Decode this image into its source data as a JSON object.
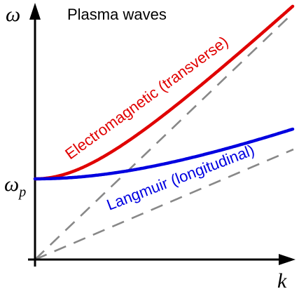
{
  "title": "Plasma waves",
  "axes": {
    "y_label": "ω",
    "x_label": "k",
    "y_tick_main": "ω",
    "y_tick_sub": "p"
  },
  "curves": {
    "electromagnetic": {
      "label": "Electromagnetic (transverse)",
      "color": "#e00000"
    },
    "langmuir": {
      "label": "Langmuir (longitudinal)",
      "color": "#0000e0"
    }
  },
  "reference_lines_color": "#888888",
  "axis_color": "#000000"
}
